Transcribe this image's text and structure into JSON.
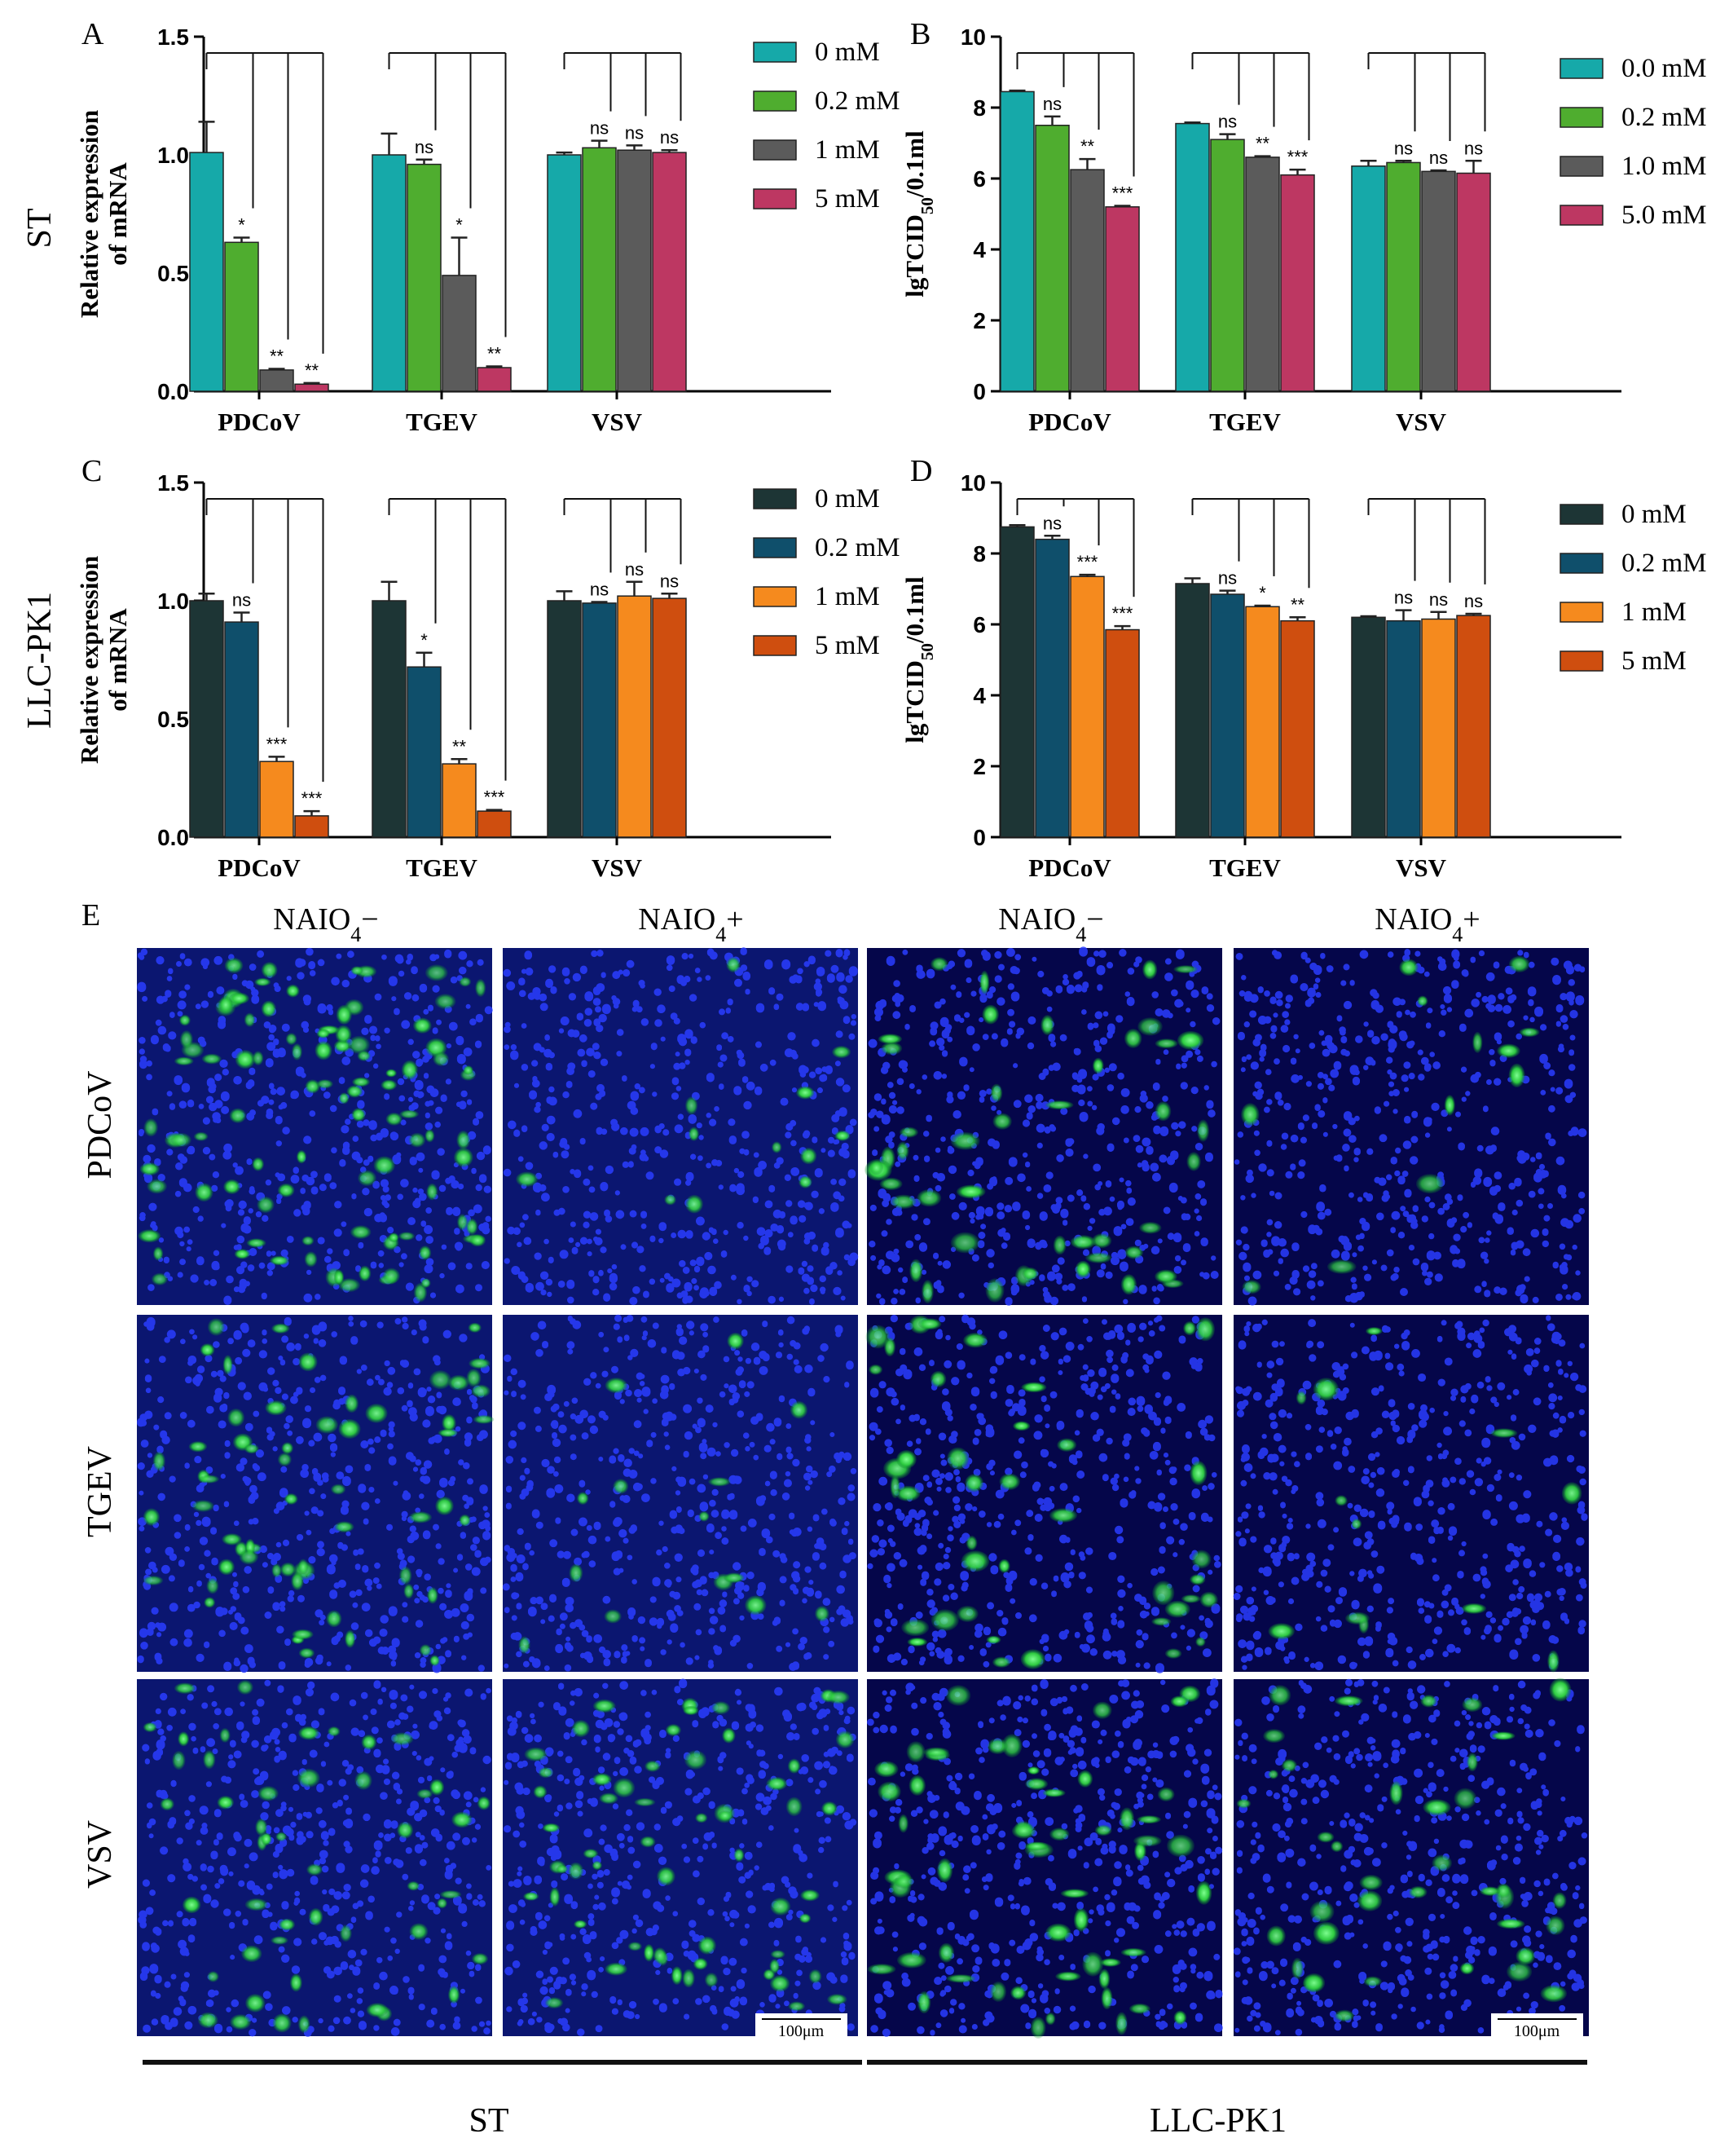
{
  "chart_data": [
    {
      "panel": "A",
      "type": "bar",
      "row_label": "ST",
      "ylabel": [
        "Relative expression",
        "of mRNA"
      ],
      "ylim": [
        0,
        1.5
      ],
      "yticks": [
        "0.0",
        "0.5",
        "1.0",
        "1.5"
      ],
      "ytick_values": [
        0,
        0.5,
        1.0,
        1.5
      ],
      "categories": [
        "PDCoV",
        "TGEV",
        "VSV"
      ],
      "series": [
        {
          "name": "0 mM",
          "color": "#16a9a9",
          "values": [
            1.01,
            1.0,
            1.0
          ],
          "errors": [
            0.13,
            0.09,
            0.01
          ]
        },
        {
          "name": "0.2 mM",
          "color": "#4fad2f",
          "values": [
            0.63,
            0.96,
            1.03
          ],
          "errors": [
            0.02,
            0.02,
            0.03
          ]
        },
        {
          "name": "1 mM",
          "color": "#5b5b5b",
          "values": [
            0.09,
            0.49,
            1.02
          ],
          "errors": [
            0.005,
            0.16,
            0.02
          ]
        },
        {
          "name": "5 mM",
          "color": "#bd3762",
          "values": [
            0.03,
            0.1,
            1.01
          ],
          "errors": [
            0.005,
            0.005,
            0.01
          ]
        }
      ],
      "significance": [
        [
          "",
          "*",
          "**",
          "**"
        ],
        [
          "",
          "ns",
          "*",
          "**"
        ],
        [
          "",
          "ns",
          "ns",
          "ns"
        ]
      ]
    },
    {
      "panel": "B",
      "type": "bar",
      "ylabel": "lgTCID50/0.1ml",
      "ylim": [
        0,
        10
      ],
      "yticks": [
        "0",
        "2",
        "4",
        "6",
        "8",
        "10"
      ],
      "ytick_values": [
        0,
        2,
        4,
        6,
        8,
        10
      ],
      "categories": [
        "PDCoV",
        "TGEV",
        "VSV"
      ],
      "series": [
        {
          "name": "0.0 mM",
          "color": "#16a9a9",
          "values": [
            8.45,
            7.55,
            6.35
          ],
          "errors": [
            0.03,
            0.03,
            0.15
          ]
        },
        {
          "name": "0.2 mM",
          "color": "#4fad2f",
          "values": [
            7.5,
            7.1,
            6.45
          ],
          "errors": [
            0.25,
            0.15,
            0.05
          ]
        },
        {
          "name": "1.0 mM",
          "color": "#5b5b5b",
          "values": [
            6.25,
            6.6,
            6.2
          ],
          "errors": [
            0.3,
            0.03,
            0.03
          ]
        },
        {
          "name": "5.0 mM",
          "color": "#bd3762",
          "values": [
            5.2,
            6.1,
            6.15
          ],
          "errors": [
            0.03,
            0.15,
            0.35
          ]
        }
      ],
      "significance": [
        [
          "",
          "ns",
          "**",
          "***"
        ],
        [
          "",
          "ns",
          "**",
          "***"
        ],
        [
          "",
          "ns",
          "ns",
          "ns"
        ]
      ]
    },
    {
      "panel": "C",
      "type": "bar",
      "row_label": "LLC-PK1",
      "ylabel": [
        "Relative expression",
        "of mRNA"
      ],
      "ylim": [
        0,
        1.5
      ],
      "yticks": [
        "0.0",
        "0.5",
        "1.0",
        "1.5"
      ],
      "ytick_values": [
        0,
        0.5,
        1.0,
        1.5
      ],
      "categories": [
        "PDCoV",
        "TGEV",
        "VSV"
      ],
      "series": [
        {
          "name": "0 mM",
          "color": "#1d3535",
          "values": [
            1.0,
            1.0,
            1.0
          ],
          "errors": [
            0.03,
            0.08,
            0.04
          ]
        },
        {
          "name": "0.2 mM",
          "color": "#0f4f6b",
          "values": [
            0.91,
            0.72,
            0.99
          ],
          "errors": [
            0.04,
            0.06,
            0.005
          ]
        },
        {
          "name": "1 mM",
          "color": "#f58a1e",
          "values": [
            0.32,
            0.31,
            1.02
          ],
          "errors": [
            0.02,
            0.02,
            0.06
          ]
        },
        {
          "name": "5 mM",
          "color": "#cf4e0f",
          "values": [
            0.09,
            0.11,
            1.01
          ],
          "errors": [
            0.02,
            0.005,
            0.02
          ]
        }
      ],
      "significance": [
        [
          "",
          "ns",
          "***",
          "***"
        ],
        [
          "",
          "*",
          "**",
          "***"
        ],
        [
          "",
          "ns",
          "ns",
          "ns"
        ]
      ]
    },
    {
      "panel": "D",
      "type": "bar",
      "ylabel": "lgTCID50/0.1ml",
      "ylim": [
        0,
        10
      ],
      "yticks": [
        "0",
        "2",
        "4",
        "6",
        "8",
        "10"
      ],
      "ytick_values": [
        0,
        2,
        4,
        6,
        8,
        10
      ],
      "categories": [
        "PDCoV",
        "TGEV",
        "VSV"
      ],
      "series": [
        {
          "name": "0 mM",
          "color": "#1d3535",
          "values": [
            8.75,
            7.15,
            6.2
          ],
          "errors": [
            0.05,
            0.15,
            0.03
          ]
        },
        {
          "name": "0.2 mM",
          "color": "#0f4f6b",
          "values": [
            8.4,
            6.85,
            6.1
          ],
          "errors": [
            0.1,
            0.1,
            0.3
          ]
        },
        {
          "name": "1 mM",
          "color": "#f58a1e",
          "values": [
            7.35,
            6.5,
            6.15
          ],
          "errors": [
            0.05,
            0.03,
            0.2
          ]
        },
        {
          "name": "5 mM",
          "color": "#cf4e0f",
          "values": [
            5.85,
            6.1,
            6.25
          ],
          "errors": [
            0.1,
            0.1,
            0.05
          ]
        }
      ],
      "significance": [
        [
          "",
          "ns",
          "***",
          "***"
        ],
        [
          "",
          "ns",
          "*",
          "**"
        ],
        [
          "",
          "ns",
          "ns",
          "ns"
        ]
      ]
    }
  ],
  "panel_e": {
    "label": "E",
    "columns": [
      "NAIO",
      "NAIO",
      "NAIO",
      "NAIO"
    ],
    "column_subscript": "4",
    "column_signs": [
      "−",
      "+",
      "−",
      "+"
    ],
    "rows": [
      "PDCoV",
      "TGEV",
      "VSV"
    ],
    "groups": [
      "ST",
      "LLC-PK1"
    ],
    "scale_bar": "100μm",
    "green_density": [
      [
        95,
        12,
        45,
        12
      ],
      [
        60,
        14,
        40,
        12
      ],
      [
        48,
        60,
        55,
        38
      ]
    ]
  }
}
